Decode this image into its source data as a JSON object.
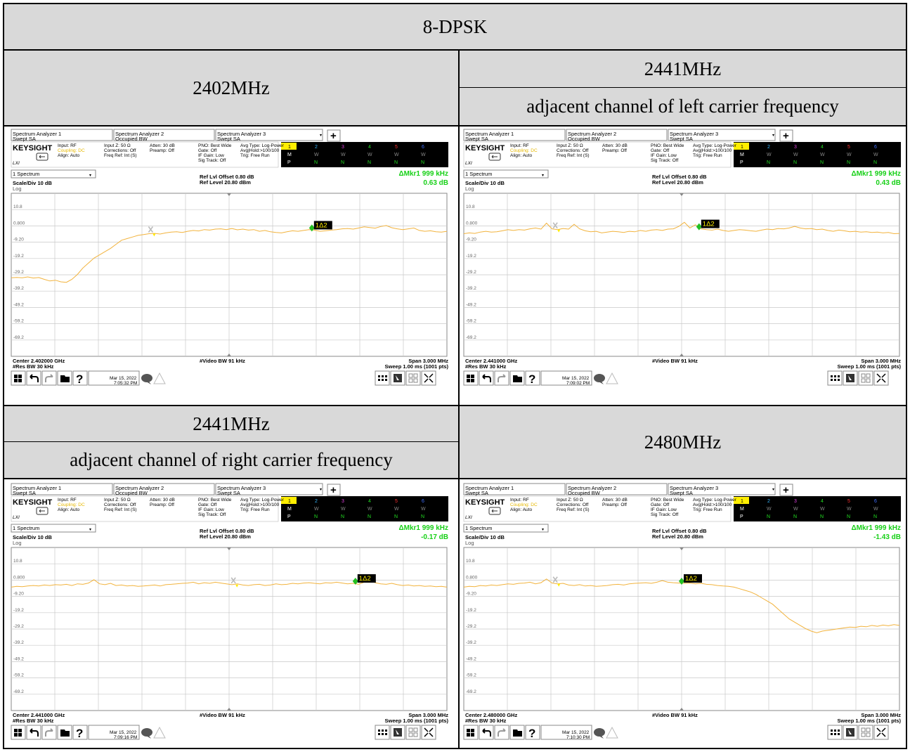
{
  "title": "8-DPSK",
  "cells": [
    {
      "heading": "2402MHz",
      "subheading": "",
      "screen": {
        "marker_value": "0.63 dB",
        "center": "Center 2.402000 GHz",
        "date": "Mar 15, 2022",
        "time": "7:05:32 PM",
        "trace": [
          -31,
          -30.8,
          -31,
          -30.5,
          -31.2,
          -30.9,
          -32,
          -33,
          -32.5,
          -33.5,
          -33.8,
          -32,
          -29,
          -25,
          -22,
          -19,
          -17,
          -15,
          -13,
          -10.5,
          -8,
          -7,
          -6,
          -5,
          -4.5,
          -4,
          -3.8,
          -4.2,
          -3.5,
          -3,
          -2.8,
          -3.2,
          -2.5,
          -2,
          -2.3,
          -1.5,
          -1.8,
          -1.2,
          -1,
          -1.5,
          -0.8,
          -1.6,
          -1.2,
          -1.8,
          -1.5,
          -2.5,
          -2,
          -2.8,
          -3.2,
          -3.5,
          -2.8,
          -2.2,
          -2.5,
          -2,
          -1.5,
          -1.8,
          -2.5,
          -2.2,
          -1.8,
          -1.5,
          -1,
          -0.8,
          -1.2,
          -0.5,
          0.2,
          -0.2,
          -0.6,
          0.4,
          1,
          -0.3,
          -1,
          -1.5,
          -1,
          -0.5,
          -2,
          -2.5,
          -2.2,
          -2.8,
          -3,
          -2.5
        ],
        "mx": 0.32,
        "dx": 0.69
      }
    },
    {
      "heading": "2441MHz",
      "subheading": "adjacent channel of left carrier frequency",
      "screen": {
        "marker_value": "0.43 dB",
        "center": "Center 2.441000 GHz",
        "date": "Mar 15, 2022",
        "time": "7:09:02 PM",
        "trace": [
          -4,
          -3.5,
          -3.8,
          -3,
          -2.5,
          -3,
          -2.8,
          -2.2,
          -1.5,
          -2,
          -1.5,
          -1.8,
          -1,
          -0.5,
          -1.2,
          2.5,
          -1,
          -1.5,
          -0.8,
          -1.2,
          1.8,
          -1,
          -2.2,
          -2.8,
          -2.5,
          -3.5,
          -3,
          -2.5,
          -2.8,
          -3.2,
          -2.5,
          -2.8,
          -2,
          -2.5,
          -1.8,
          -1.5,
          -2,
          -1.2,
          -1,
          0.5,
          3,
          -0.5,
          1.5,
          -1,
          -1.5,
          -1.8,
          -1.2,
          -2,
          -2.5,
          -2,
          -1.5,
          -1.8,
          -2.2,
          -2.5,
          -1.8,
          -1.2,
          -1.5,
          -0.8,
          -1,
          -0.5,
          0.5,
          -0.5,
          -1,
          -0.8,
          -1.5,
          -1.2,
          -2,
          -2.5,
          -1.8,
          -2.2,
          -2.8,
          -2.5,
          -3,
          -2.8,
          -3.2,
          -3,
          -3.5,
          -3.2,
          -4,
          -3.8
        ],
        "mx": 0.21,
        "dx": 0.54
      }
    },
    {
      "heading": "2441MHz",
      "subheading": "adjacent channel of right carrier frequency",
      "screen": {
        "marker_value": "-0.17 dB",
        "center": "Center 2.441000 GHz",
        "date": "Mar 15, 2022",
        "time": "7:09:16 PM",
        "trace": [
          -3.5,
          -3,
          -3.2,
          -2.8,
          -2.5,
          -2.8,
          -2.2,
          -2.5,
          -2,
          -2.2,
          -1.8,
          -2.5,
          -1.5,
          -1.8,
          -1,
          1,
          -1.5,
          -2,
          -1.2,
          -2.5,
          -2.2,
          -2.8,
          -2.5,
          -3,
          -2.8,
          -2.5,
          -2.2,
          -2.8,
          -2,
          -1.8,
          -1.5,
          -1.2,
          -1,
          -0.5,
          -1.5,
          -0.8,
          -1.2,
          -0.5,
          -1,
          -1.5,
          -2,
          -1.5,
          -2.2,
          -2.5,
          -2,
          -1.8,
          -2.5,
          -2.2,
          -1.5,
          -2,
          -1.8,
          -1.2,
          -1.5,
          -1,
          -0.8,
          -1.2,
          -1.5,
          -0.8,
          -1,
          -0.5,
          -1,
          -1.5,
          -1.2,
          -1.8,
          -0.5,
          0.5,
          -0.8,
          -1.5,
          -1.8,
          -1.2,
          -2,
          -2.5,
          -2.2,
          -2.8,
          -2.5,
          -3,
          -2.8,
          -3.2,
          -3,
          -3.5
        ],
        "mx": 0.51,
        "dx": 0.79
      }
    },
    {
      "heading": "2480MHz",
      "subheading": "",
      "screen": {
        "marker_value": "-1.43 dB",
        "center": "Center 2.480000 GHz",
        "date": "Mar 15, 2022",
        "time": "7:10:30 PM",
        "trace": [
          -3.5,
          -3,
          -3.2,
          -2.5,
          -2.8,
          -2.2,
          -2.5,
          -2,
          -1.5,
          -1.8,
          -1.2,
          -1,
          -0.5,
          -1.5,
          -0.8,
          1.5,
          -1,
          -1.5,
          -1.2,
          -2.2,
          -2.5,
          -2,
          -2.8,
          -2.5,
          -3,
          -2.8,
          -2.5,
          -2,
          -1.8,
          -2.2,
          -1.5,
          -1.2,
          -1,
          -0.8,
          -1.2,
          -0.5,
          0.5,
          -0.5,
          -0.8,
          -1,
          -1.2,
          -1,
          -1.5,
          -1.2,
          -1.8,
          -2,
          -2.5,
          -2.8,
          -3,
          -3.5,
          -4.5,
          -5.5,
          -6.5,
          -8,
          -10,
          -12,
          -14,
          -17,
          -20,
          -23,
          -25,
          -27,
          -29,
          -30.5,
          -31.5,
          -30.5,
          -30,
          -29.5,
          -29,
          -28.5,
          -28,
          -28.2,
          -27.5,
          -27.8,
          -27,
          -27.5,
          -26.8,
          -27.2,
          -26.5,
          -27
        ],
        "mx": 0.21,
        "dx": 0.5
      }
    }
  ],
  "analyzer": {
    "tab1_name": "Spectrum Analyzer 1",
    "tab1_mode": "Swept SA",
    "tab2_name": "Spectrum Analyzer 2",
    "tab2_mode": "Occupied BW",
    "tab3_name": "Spectrum Analyzer 3",
    "tab3_mode": "Swept SA",
    "logo": "KEYSIGHT",
    "input": "Input: RF",
    "coupling": "Coupling: DC",
    "align": "Align: Auto",
    "inputz": "Input Z: 50 Ω",
    "corrections": "Corrections: Off",
    "freqref": "Freq Ref: Int (S)",
    "atten": "Atten: 30 dB",
    "preamp": "Preamp: Off",
    "pno": "PNO: Best Wide",
    "gate": "Gate: Off",
    "ifgain": "IF Gain: Low",
    "sigtrack": "Sig Track: Off",
    "avgtype": "Avg Type: Log-Power",
    "avghold": "Avg|Hold:>100/100",
    "trig": "Trig: Free Run",
    "lxi": "LXI",
    "view": "1 Spectrum",
    "scale": "Scale/Div 10 dB",
    "log": "Log",
    "refoffset": "Ref Lvl Offset 0.80 dB",
    "reflevel": "Ref Level 20.80 dBm",
    "marker_label": "ΔMkr1  999 kHz",
    "ticks": [
      "10.8",
      "0.800",
      "-9.20",
      "-19.2",
      "-29.2",
      "-39.2",
      "-49.2",
      "-59.2",
      "-69.2"
    ],
    "rbw": "#Res BW 30 kHz",
    "vbw": "#Video BW 91 kHz",
    "span": "Span 3.000 MHz",
    "sweep": "Sweep 1.00 ms (1001 pts)",
    "delta_marker": "1Δ2"
  },
  "colors": {
    "trace": "#f2b33d",
    "marker": "#22c022",
    "ref_marker": "#bbbbbb",
    "grid": "#c8c8c8"
  }
}
